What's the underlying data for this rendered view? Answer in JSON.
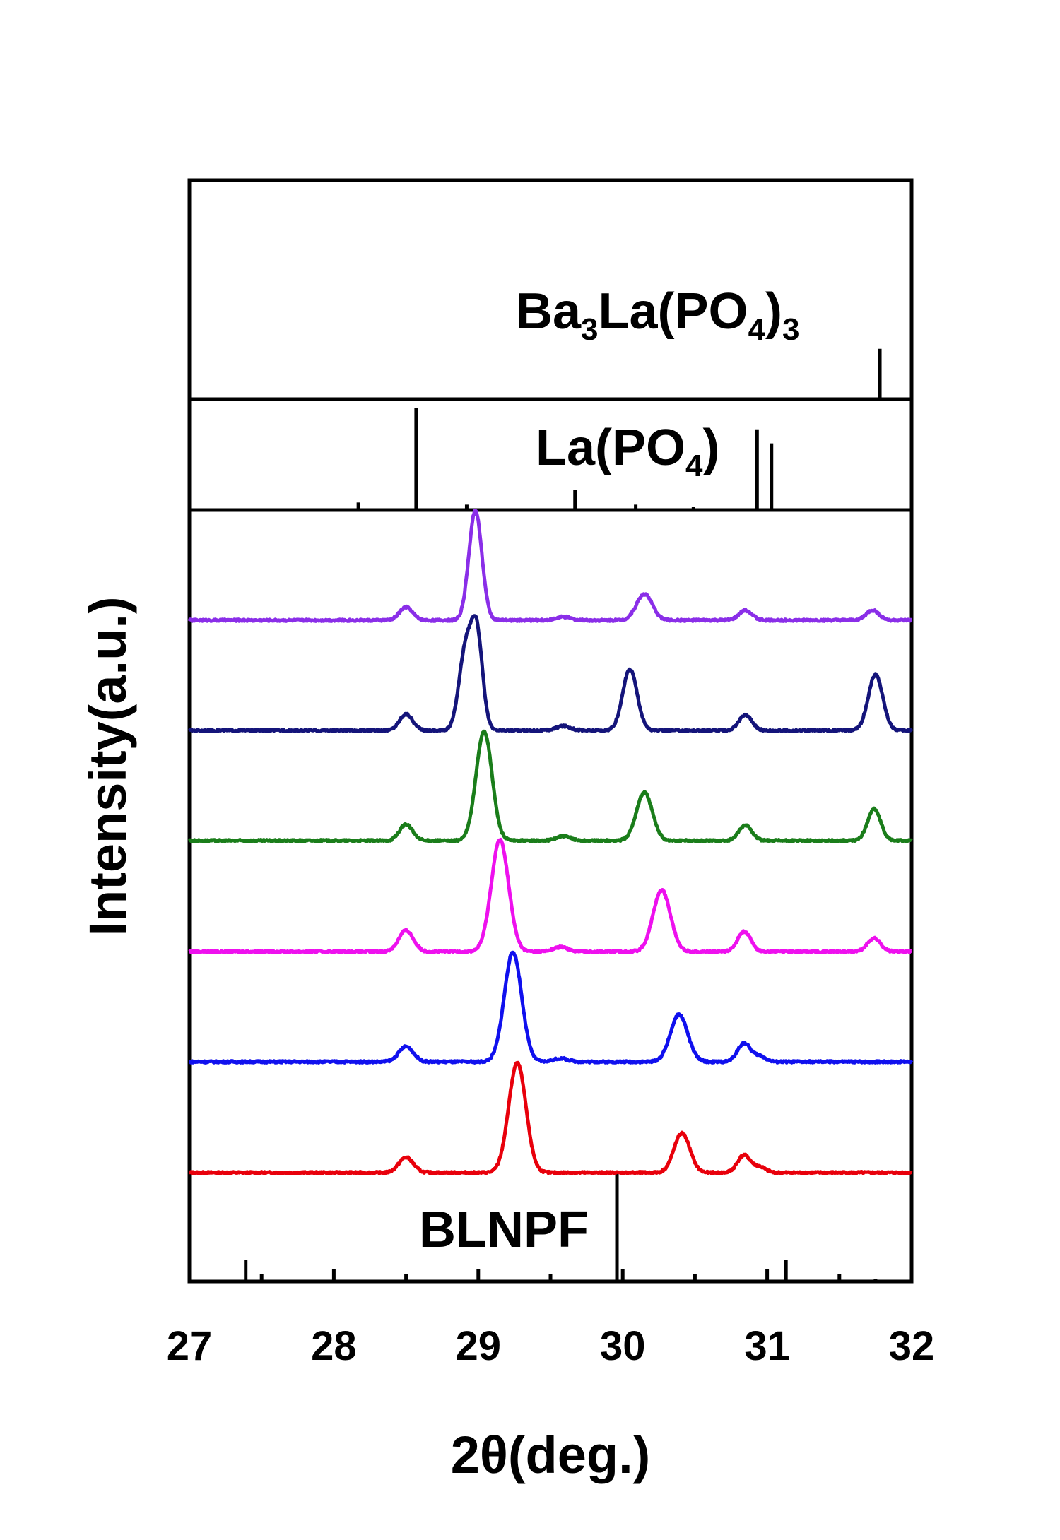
{
  "chart_data": {
    "type": "line",
    "xlabel": "2θ(deg.)",
    "ylabel": "Intensity(a.u.)",
    "xlim": [
      27,
      32
    ],
    "x_ticks": [
      "27",
      "28",
      "29",
      "30",
      "31",
      "32"
    ],
    "grid": false,
    "panels": [
      {
        "id": "ba3la",
        "label_parts": [
          {
            "t": "Ba",
            "sub": false
          },
          {
            "t": "3",
            "sub": true
          },
          {
            "t": "La(PO",
            "sub": false
          },
          {
            "t": "4",
            "sub": true
          },
          {
            "t": ")",
            "sub": false
          },
          {
            "t": "3",
            "sub": true
          }
        ],
        "reference_peaks": [
          {
            "x": 31.78,
            "h": 0.23
          }
        ]
      },
      {
        "id": "lapo4",
        "label_parts": [
          {
            "t": "La(PO",
            "sub": false
          },
          {
            "t": "4",
            "sub": true
          },
          {
            "t": ")",
            "sub": false
          }
        ],
        "reference_peaks": [
          {
            "x": 28.17,
            "h": 0.07
          },
          {
            "x": 28.57,
            "h": 0.95
          },
          {
            "x": 28.92,
            "h": 0.05
          },
          {
            "x": 29.67,
            "h": 0.19
          },
          {
            "x": 30.09,
            "h": 0.05
          },
          {
            "x": 30.49,
            "h": 0.03
          },
          {
            "x": 30.93,
            "h": 0.75
          },
          {
            "x": 31.03,
            "h": 0.62
          }
        ]
      },
      {
        "id": "blnpf",
        "label": "BLNPF",
        "reference_peaks": [
          {
            "x": 27.39,
            "h": 0.2
          },
          {
            "x": 29.96,
            "h": 1.0
          },
          {
            "x": 31.13,
            "h": 0.2
          },
          {
            "x": 31.75,
            "h": 0.02
          }
        ]
      }
    ],
    "series": [
      {
        "color": "#e8000b",
        "peaks": [
          [
            28.5,
            0.14,
            0.05
          ],
          [
            29.27,
            1.0,
            0.06
          ],
          [
            30.41,
            0.36,
            0.055
          ],
          [
            30.84,
            0.16,
            0.045
          ],
          [
            30.95,
            0.05,
            0.04
          ]
        ]
      },
      {
        "color": "#1010ee",
        "peaks": [
          [
            28.5,
            0.14,
            0.05
          ],
          [
            29.24,
            1.0,
            0.06
          ],
          [
            29.57,
            0.03,
            0.05
          ],
          [
            30.39,
            0.43,
            0.06
          ],
          [
            30.84,
            0.17,
            0.045
          ],
          [
            30.95,
            0.05,
            0.04
          ]
        ]
      },
      {
        "color": "#ee10ee",
        "peaks": [
          [
            28.5,
            0.19,
            0.05
          ],
          [
            29.15,
            1.0,
            0.06
          ],
          [
            29.57,
            0.04,
            0.05
          ],
          [
            30.27,
            0.55,
            0.06
          ],
          [
            30.84,
            0.18,
            0.045
          ],
          [
            31.74,
            0.12,
            0.045
          ]
        ]
      },
      {
        "color": "#1a7d1a",
        "peaks": [
          [
            28.5,
            0.15,
            0.045
          ],
          [
            29.04,
            1.0,
            0.055
          ],
          [
            29.59,
            0.04,
            0.05
          ],
          [
            30.15,
            0.44,
            0.055
          ],
          [
            30.85,
            0.14,
            0.045
          ],
          [
            31.74,
            0.29,
            0.045
          ]
        ]
      },
      {
        "color": "#14147a",
        "peaks": [
          [
            28.5,
            0.15,
            0.045
          ],
          [
            28.91,
            0.71,
            0.045
          ],
          [
            28.99,
            0.86,
            0.04
          ],
          [
            29.59,
            0.04,
            0.05
          ],
          [
            30.05,
            0.56,
            0.05
          ],
          [
            30.85,
            0.14,
            0.045
          ],
          [
            31.75,
            0.51,
            0.05
          ]
        ]
      },
      {
        "color": "#8a2ee8",
        "peaks": [
          [
            28.5,
            0.12,
            0.045
          ],
          [
            28.98,
            1.0,
            0.045
          ],
          [
            29.59,
            0.03,
            0.05
          ],
          [
            30.15,
            0.24,
            0.055
          ],
          [
            30.85,
            0.09,
            0.045
          ],
          [
            31.73,
            0.09,
            0.045
          ]
        ]
      }
    ]
  }
}
